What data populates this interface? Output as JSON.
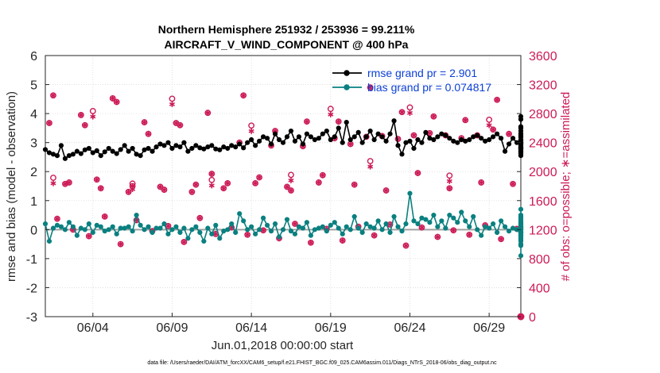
{
  "chart_data": {
    "type": "line",
    "title_line1": "Northern Hemisphere 251932 / 253936 = 99.211%",
    "title_line2": "AIRCRAFT_V_WIND_COMPONENT @ 400 hPa",
    "xlabel": "Jun.01,2018 00:00:00 start",
    "ylabel_left": "rmse and bias (model - observation)",
    "ylabel_right": "# of obs: o=possible; ∗=assimilated",
    "footnote": "data file: /Users/raeder/DAI/ATM_forcXX/CAM6_setup/f.e21.FHIST_BGC.f09_025.CAM6assim.011/Diags_NTrS_2018-06/obs_diag_output.nc",
    "x_range_days": [
      1.0,
      31.0
    ],
    "x_ticks": [
      {
        "day": 4,
        "label": "06/04"
      },
      {
        "day": 9,
        "label": "06/09"
      },
      {
        "day": 14,
        "label": "06/14"
      },
      {
        "day": 19,
        "label": "06/19"
      },
      {
        "day": 24,
        "label": "06/24"
      },
      {
        "day": 29,
        "label": "06/29"
      }
    ],
    "ylim_left": [
      -3,
      6
    ],
    "y_ticks_left": [
      "-3",
      "-2",
      "-1",
      "0",
      "1",
      "2",
      "3",
      "4",
      "5",
      "6"
    ],
    "ylim_right": [
      0,
      3600
    ],
    "y_ticks_right": [
      "0",
      "400",
      "800",
      "1200",
      "1600",
      "2000",
      "2400",
      "2800",
      "3200",
      "3600"
    ],
    "legend": [
      {
        "name": "rmse grand pr = 2.901",
        "color": "#000000"
      },
      {
        "name": "bias grand pr = 0.074817",
        "color": "#0a8080"
      }
    ],
    "colors": {
      "rmse": "#000000",
      "bias": "#0a8080",
      "obs": "#cc1a55",
      "zero_line": "#a0a0a0",
      "grid": "#d9d9d9"
    },
    "x_start_day": 1.0,
    "x_step_days": 0.25,
    "series": [
      {
        "name": "rmse",
        "values": [
          2.76,
          2.65,
          2.6,
          2.55,
          2.9,
          2.45,
          2.55,
          2.6,
          2.7,
          2.62,
          2.75,
          2.8,
          2.65,
          2.72,
          2.55,
          2.68,
          2.8,
          2.7,
          2.62,
          2.76,
          2.9,
          2.7,
          2.8,
          2.6,
          2.55,
          2.75,
          2.8,
          2.7,
          2.85,
          2.95,
          2.9,
          3.0,
          2.8,
          2.9,
          2.85,
          3.0,
          2.7,
          2.8,
          2.9,
          2.82,
          2.78,
          2.85,
          2.9,
          2.78,
          2.75,
          2.85,
          2.8,
          2.9,
          2.85,
          2.95,
          2.82,
          3.0,
          3.1,
          2.9,
          3.05,
          3.2,
          3.15,
          2.95,
          3.3,
          3.1,
          3.0,
          3.2,
          3.4,
          3.05,
          3.2,
          2.95,
          3.3,
          3.2,
          3.1,
          3.15,
          3.3,
          3.4,
          3.1,
          3.2,
          3.5,
          3.0,
          3.7,
          3.1,
          3.2,
          3.35,
          3.0,
          3.2,
          3.4,
          3.1,
          3.3,
          3.2,
          3.05,
          3.3,
          3.75,
          2.9,
          2.6,
          3.0,
          3.05,
          2.8,
          3.1,
          3.0,
          3.35,
          3.15,
          3.1,
          3.2,
          3.3,
          3.25,
          3.15,
          3.05,
          3.0,
          3.1,
          3.05,
          3.1,
          3.2,
          3.25,
          3.15,
          3.05,
          3.1,
          3.2,
          3.3,
          3.15,
          2.7,
          2.95,
          3.15,
          3.0,
          3.1,
          2.85,
          3.1,
          3.3,
          3.1,
          3.05,
          3.2,
          3.4,
          3.25,
          3.3,
          3.5,
          3.55,
          3.4,
          3.9,
          3.8,
          3.5,
          3.3,
          3.2,
          3.0,
          3.3,
          2.8,
          2.95,
          3.2,
          3.05,
          3.0,
          2.95,
          3.1,
          3.0,
          2.85,
          2.95,
          2.9,
          3.0,
          2.75,
          2.9,
          2.7,
          2.8,
          2.85,
          2.65,
          2.75,
          2.7,
          2.6,
          3.0,
          2.7,
          2.55,
          2.9,
          3.0,
          2.8,
          3.05,
          3.0,
          3.1,
          3.2,
          3.05,
          2.9,
          2.95,
          2.85,
          2.8,
          3.0,
          2.7,
          2.75,
          2.85,
          2.65,
          2.8,
          2.9,
          3.0,
          2.75,
          2.8,
          2.95,
          3.0,
          2.75,
          2.7
        ]
      },
      {
        "name": "bias",
        "values": [
          0.2,
          -0.4,
          0.05,
          0.15,
          0.1,
          0.0,
          0.25,
          0.1,
          -0.2,
          0.05,
          0.0,
          0.2,
          -0.1,
          0.15,
          0.1,
          -0.05,
          0.0,
          0.1,
          -0.15,
          0.05,
          0.05,
          0.1,
          -0.05,
          0.5,
          0.15,
          0.0,
          0.1,
          -0.1,
          0.05,
          0.05,
          0.2,
          -0.15,
          0.0,
          0.1,
          -0.1,
          0.05,
          -0.3,
          0.0,
          0.1,
          -0.1,
          -0.4,
          0.05,
          -0.15,
          0.15,
          -0.3,
          -0.05,
          0.0,
          0.2,
          -0.1,
          0.55,
          0.3,
          0.0,
          0.1,
          -0.15,
          0.0,
          0.4,
          0.15,
          -0.05,
          0.2,
          -0.25,
          0.0,
          0.35,
          -0.05,
          -0.15,
          0.1,
          0.05,
          0.25,
          -0.2,
          0.0,
          0.05,
          0.1,
          -0.05,
          0.15,
          0.25,
          0.05,
          -0.15,
          0.1,
          0.0,
          0.45,
          0.05,
          -0.1,
          0.2,
          0.1,
          0.05,
          0.3,
          0.0,
          0.2,
          -0.1,
          0.45,
          0.1,
          -0.05,
          0.2,
          1.25,
          0.3,
          0.2,
          0.4,
          0.35,
          0.25,
          0.5,
          0.1,
          0.3,
          0.05,
          0.5,
          0.4,
          0.25,
          0.6,
          0.3,
          0.1,
          0.45,
          0.0,
          -0.2,
          0.1,
          0.05,
          0.2,
          -0.1,
          0.3,
          0.1,
          -0.05,
          0.05,
          0.0,
          0.15,
          -0.25,
          0.05,
          0.7,
          0.1,
          -0.2,
          0.15,
          -0.55,
          -0.9,
          0.1,
          0.05,
          0.0,
          0.4,
          0.0,
          -0.1,
          -0.2,
          -0.3,
          0.1,
          -0.3,
          0.25,
          -0.1,
          0.05,
          0.15,
          0.0,
          0.25,
          -0.15,
          0.0,
          0.1,
          -0.2,
          -0.1,
          0.2,
          0.05,
          0.05,
          0.0,
          -0.1,
          0.1,
          0.0,
          -0.2,
          0.05,
          0.15,
          -0.05,
          0.1,
          0.05,
          0.2,
          -0.2,
          0.05,
          0.1,
          0.0,
          -0.1,
          0.5,
          0.2,
          0.3,
          0.05,
          -0.1,
          0.25,
          0.2,
          0.0,
          0.05,
          -0.4,
          0.05,
          0.45,
          -0.35,
          0.0,
          0.0,
          -0.5,
          0.2,
          0.0,
          0.05,
          0.1,
          0.0,
          0.05,
          0.35
        ]
      },
      {
        "name": "obs_assimilated_primary",
        "start_day": 1.25,
        "step_days": 1.0,
        "values": [
          2670,
          1830,
          2780,
          1890,
          3010,
          1720,
          2680,
          1790,
          2670,
          1720,
          2810,
          1770,
          2400,
          1840,
          2360,
          1790,
          2350,
          1850,
          2460,
          2380,
          2480,
          2490,
          2450,
          2500,
          2530,
          2500,
          2460,
          2500,
          2580,
          2520
        ]
      },
      {
        "name": "obs_assimilated_secondary",
        "start_day": 1.5,
        "step_days": 1.0,
        "values": [
          3050,
          1850,
          2640,
          1770,
          2960,
          1800,
          2520,
          1750,
          2640,
          1820,
          1970,
          1840,
          3050,
          1920,
          2560,
          1740,
          2690,
          1950,
          2690,
          1820,
          3160,
          1740,
          2820,
          1980,
          2760,
          1770,
          2710,
          1850,
          2990,
          1830
        ]
      },
      {
        "name": "obs_assimilated_dip",
        "start_day": 1.75,
        "step_days": 1.0,
        "values": [
          1350,
          1200,
          1110,
          1380,
          1000,
          1330,
          1180,
          1250,
          1030,
          1360,
          1140,
          1230,
          1130,
          1190,
          1080,
          1280,
          1020,
          1210,
          1050,
          1240,
          1120,
          1270,
          980,
          1230,
          1100,
          1190,
          1130,
          1260,
          1070,
          1210
        ]
      },
      {
        "name": "obs_possible_extra",
        "start_day": 1.5,
        "step_days": 2.5,
        "values": [
          1860,
          2780,
          1780,
          2950,
          1830,
          2580,
          1900,
          2810,
          2090,
          2830,
          1890,
          2660
        ]
      }
    ],
    "right_axis_end_marker": {
      "day": 31.0,
      "value": 0
    }
  }
}
